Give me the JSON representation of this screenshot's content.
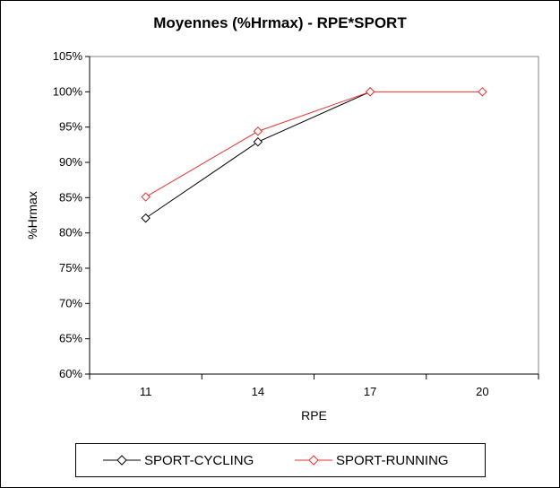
{
  "chart_data": {
    "type": "line",
    "title": "Moyennes (%Hrmax) - RPE*SPORT",
    "xlabel": "RPE",
    "ylabel": "%Hrmax",
    "categories": [
      "11",
      "14",
      "17",
      "20"
    ],
    "ylim": [
      60,
      105
    ],
    "yticks": [
      "60%",
      "65%",
      "70%",
      "75%",
      "80%",
      "85%",
      "90%",
      "95%",
      "100%",
      "105%"
    ],
    "grid": false,
    "legend_position": "bottom",
    "series": [
      {
        "name": "SPORT-CYCLING",
        "color": "#000000",
        "marker": "diamond",
        "values": [
          82.1,
          92.9,
          100,
          null
        ]
      },
      {
        "name": "SPORT-RUNNING",
        "color": "#e8322f",
        "marker": "diamond",
        "values": [
          85.1,
          94.4,
          100,
          100
        ]
      }
    ]
  }
}
